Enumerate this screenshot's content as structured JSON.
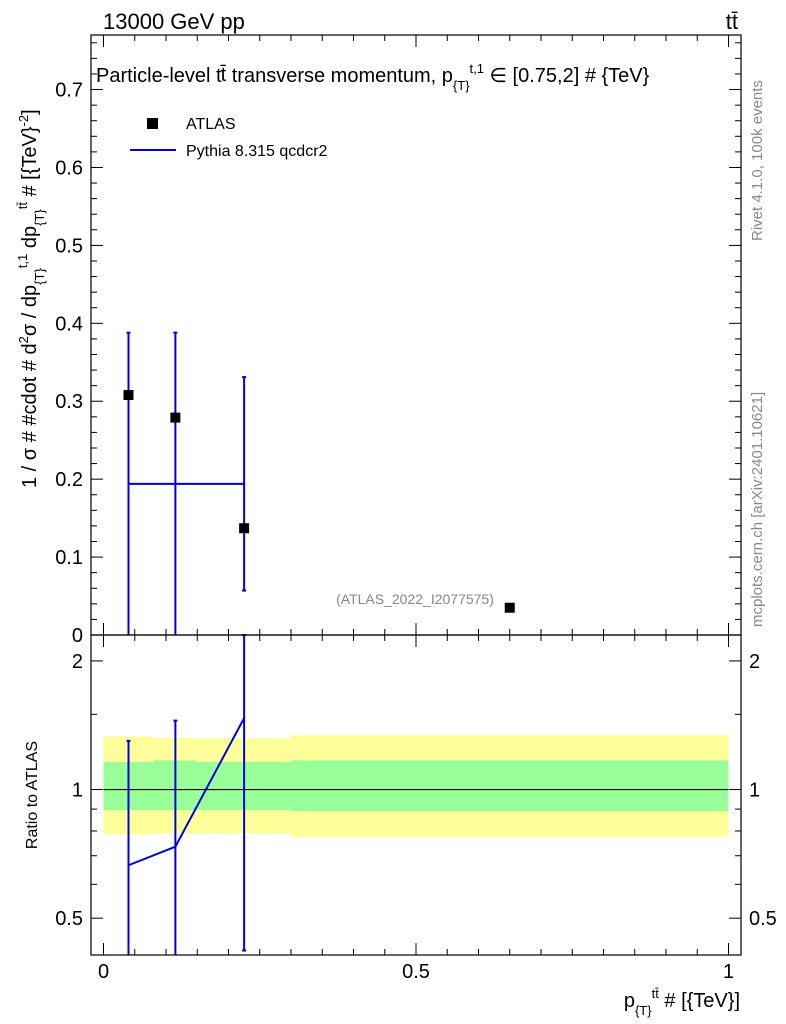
{
  "header": {
    "left": "13000 GeV pp",
    "right": "tt̄"
  },
  "side_labels": {
    "rivet": "Rivet 4.1.0,  100k events",
    "mcplots": "mcplots.cern.ch [arXiv:2401.10621]"
  },
  "colors": {
    "data_marker": "#000000",
    "mc_line": "#0000dd",
    "band_outer": "#ffff99",
    "band_inner": "#99ff99"
  },
  "chart_data": [
    {
      "type": "scatter",
      "panel": "main",
      "title": "Particle-level tt̄ transverse momentum, p{T}t,1 ∈ [0.75,2] # {TeV}",
      "ylabel": "1 / σ # #cdot # d²σ / dp{T}t,1 dp{T}tt̄ # [{TeV}⁻²]",
      "xlim": [
        -0.02,
        1.02
      ],
      "ylim": [
        0,
        0.77
      ],
      "yticks": [
        0,
        0.1,
        0.2,
        0.3,
        0.4,
        0.5,
        0.6,
        0.7
      ],
      "ytick_labels": [
        "0",
        "0.1",
        "0.2",
        "0.3",
        "0.4",
        "0.5",
        "0.6",
        "0.7"
      ],
      "legend_position": "top-left",
      "watermark": "(ATLAS_2022_I2077575)",
      "series": [
        {
          "name": "ATLAS",
          "style": "marker",
          "points": [
            {
              "x": 0.04,
              "y": 0.308
            },
            {
              "x": 0.115,
              "y": 0.279
            },
            {
              "x": 0.225,
              "y": 0.137
            },
            {
              "x": 0.65,
              "y": 0.035
            }
          ]
        },
        {
          "name": "Pythia 8.315 qcdcr2",
          "style": "histogram",
          "bins": [
            {
              "xlo": 0.04,
              "xhi": 0.225,
              "y": 0.194
            }
          ],
          "error_bars": [
            {
              "x": 0.04,
              "ylo": 0,
              "yhi": 0.388
            },
            {
              "x": 0.115,
              "ylo": 0,
              "yhi": 0.388
            },
            {
              "x": 0.225,
              "ylo": 0.057,
              "yhi": 0.331
            }
          ]
        }
      ]
    },
    {
      "type": "line",
      "panel": "ratio",
      "ylabel": "Ratio to ATLAS",
      "xlabel": "p{T}tt̄ # [{TeV}]",
      "xlim": [
        -0.02,
        1.02
      ],
      "ylim": [
        0.41,
        2.3
      ],
      "log_y": true,
      "yticks": [
        0.5,
        1,
        2
      ],
      "ytick_labels": [
        "0.5",
        "1",
        "2"
      ],
      "xticks": [
        0,
        0.5,
        1
      ],
      "xtick_labels": [
        "0",
        "0.5",
        "1"
      ],
      "reference_line": 1,
      "bands": [
        {
          "xlo": 0.0,
          "xhi": 0.08,
          "inner": [
            0.895,
            1.16
          ],
          "outer": [
            0.785,
            1.33
          ]
        },
        {
          "xlo": 0.08,
          "xhi": 0.15,
          "inner": [
            0.895,
            1.17
          ],
          "outer": [
            0.79,
            1.32
          ]
        },
        {
          "xlo": 0.15,
          "xhi": 0.3,
          "inner": [
            0.895,
            1.16
          ],
          "outer": [
            0.79,
            1.32
          ]
        },
        {
          "xlo": 0.3,
          "xhi": 1.0,
          "inner": [
            0.89,
            1.17
          ],
          "outer": [
            0.775,
            1.34
          ]
        }
      ],
      "series": [
        {
          "name": "Pythia 8.315 qcdcr2",
          "points": [
            {
              "x": 0.04,
              "y": 0.665
            },
            {
              "x": 0.115,
              "y": 0.735
            },
            {
              "x": 0.225,
              "y": 1.47
            }
          ],
          "error_bars": [
            {
              "x": 0.04,
              "ylo": 0.41,
              "yhi": 1.3
            },
            {
              "x": 0.115,
              "ylo": 0.41,
              "yhi": 1.45
            },
            {
              "x": 0.225,
              "ylo": 0.42,
              "yhi": 2.3
            }
          ]
        }
      ]
    }
  ]
}
